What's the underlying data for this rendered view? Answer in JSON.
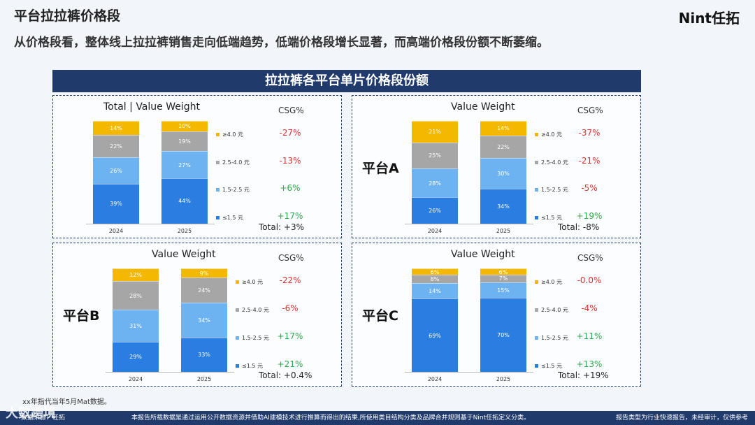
{
  "header": {
    "title": "平台拉拉裤价格段",
    "subtitle": "从价格段看，整体线上拉拉裤销售走向低端趋势，低端价格段增长显著，而高端价格段份额不断萎缩。",
    "logo": "Nint任拓"
  },
  "banner": {
    "title": "拉拉裤各平台单片价格段份额"
  },
  "colors": {
    "seg_high": "#f5b800",
    "seg_mid_high": "#a6a6a6",
    "seg_mid_low": "#6db3f2",
    "seg_low": "#2a7de1",
    "negative": "#e03030",
    "positive": "#2aa84a"
  },
  "chart_data": [
    {
      "type": "bar",
      "stacked": true,
      "panel_title": "Total | Value Weight",
      "platform": "",
      "categories": [
        "2024",
        "2025"
      ],
      "series": [
        {
          "name": "≤1.5 元",
          "values": [
            39,
            44
          ]
        },
        {
          "name": "1.5-2.5 元",
          "values": [
            26,
            27
          ]
        },
        {
          "name": "2.5-4.0 元",
          "values": [
            22,
            19
          ]
        },
        {
          "name": "≥4.0 元",
          "values": [
            14,
            10
          ]
        }
      ],
      "csg_label": "CSG%",
      "csg": [
        "-27%",
        "-13%",
        "+6%",
        "+17%"
      ],
      "total": "Total:  +3%"
    },
    {
      "type": "bar",
      "stacked": true,
      "panel_title": "Value Weight",
      "platform": "平台A",
      "categories": [
        "2024",
        "2025"
      ],
      "series": [
        {
          "name": "≤1.5 元",
          "values": [
            26,
            34
          ]
        },
        {
          "name": "1.5-2.5 元",
          "values": [
            28,
            30
          ]
        },
        {
          "name": "2.5-4.0 元",
          "values": [
            25,
            22
          ]
        },
        {
          "name": "≥4.0 元",
          "values": [
            21,
            14
          ]
        }
      ],
      "csg_label": "CSG%",
      "csg": [
        "-37%",
        "-21%",
        "-5%",
        "+19%"
      ],
      "total": "Total:  -8%"
    },
    {
      "type": "bar",
      "stacked": true,
      "panel_title": "Value Weight",
      "platform": "平台B",
      "categories": [
        "2024",
        "2025"
      ],
      "series": [
        {
          "name": "≤1.5 元",
          "values": [
            29,
            33
          ]
        },
        {
          "name": "1.5-2.5 元",
          "values": [
            31,
            34
          ]
        },
        {
          "name": "2.5-4.0 元",
          "values": [
            28,
            24
          ]
        },
        {
          "name": "≥4.0 元",
          "values": [
            12,
            9
          ]
        }
      ],
      "csg_label": "CSG%",
      "csg": [
        "-22%",
        "-6%",
        "+17%",
        "+21%"
      ],
      "total": "Total:  +0.4%"
    },
    {
      "type": "bar",
      "stacked": true,
      "panel_title": "Value Weight",
      "platform": "平台C",
      "categories": [
        "2024",
        "2025"
      ],
      "series": [
        {
          "name": "≤1.5 元",
          "values": [
            69,
            70
          ]
        },
        {
          "name": "1.5-2.5 元",
          "values": [
            14,
            15
          ]
        },
        {
          "name": "2.5-4.0 元",
          "values": [
            8,
            7
          ]
        },
        {
          "name": "≥4.0 元",
          "values": [
            6,
            6
          ]
        }
      ],
      "csg_label": "CSG%",
      "csg": [
        "-0.0%",
        "-4%",
        "+11%",
        "+13%"
      ],
      "total": "Total:  +19%"
    }
  ],
  "footer": {
    "note": "xx年指代当年5月Mat数据。",
    "source": "数据来源：任拓",
    "disclaimer": "本报告所载数据是通过运用公开数据资源并借助AI建模技术进行推算而得出的结果,所使用类目结构分类及品牌合并规则基于Nint任拓定义分类。",
    "right": "报告类型为行业快速报告，未经审计，仅供参考",
    "watermark": "大数跨境"
  }
}
